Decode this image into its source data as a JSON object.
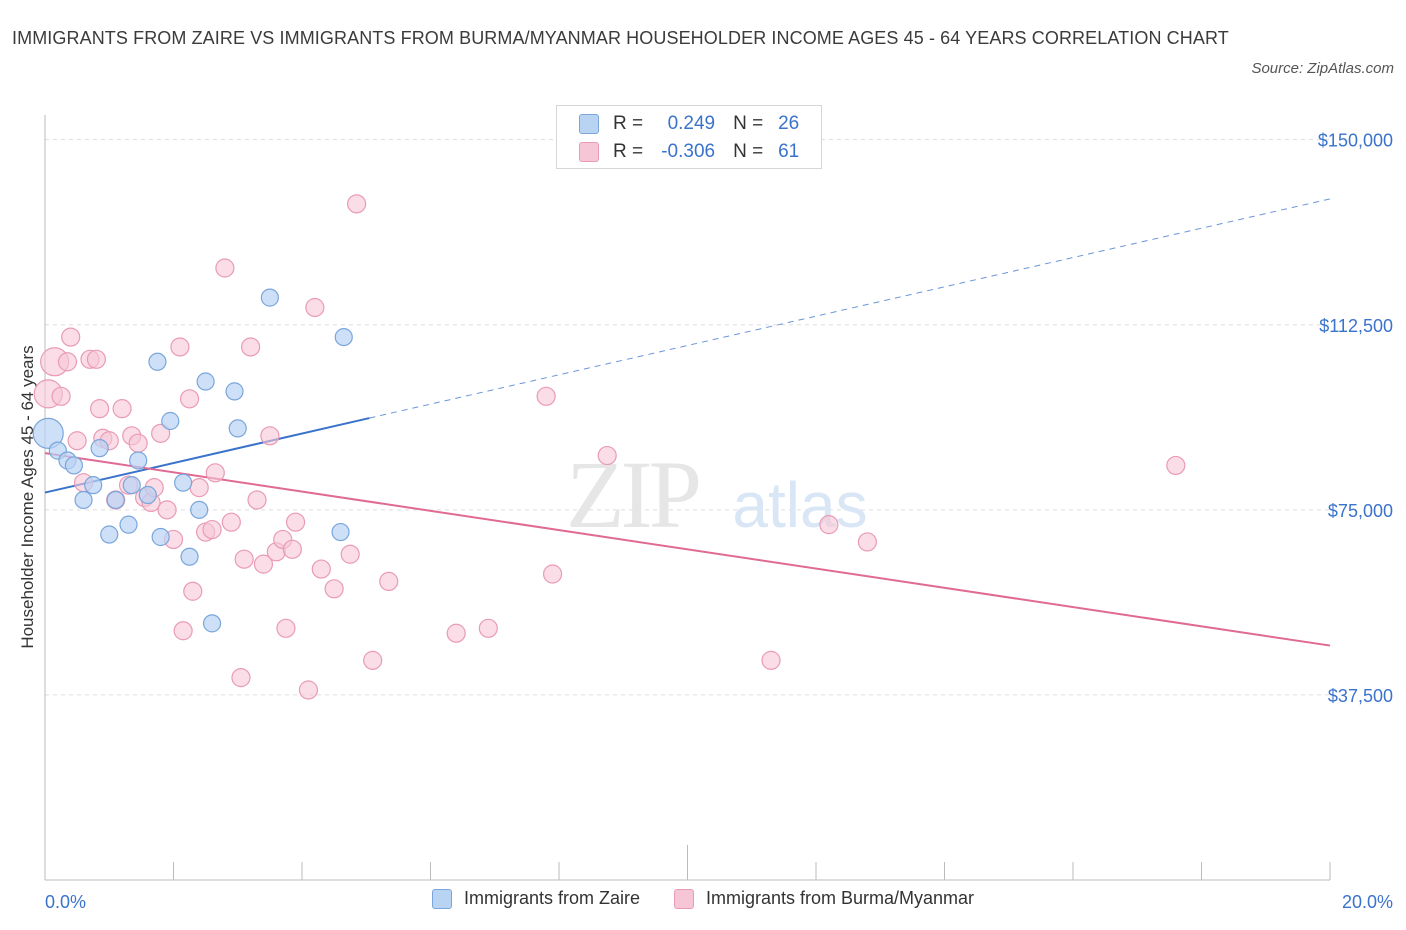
{
  "title": "IMMIGRANTS FROM ZAIRE VS IMMIGRANTS FROM BURMA/MYANMAR HOUSEHOLDER INCOME AGES 45 - 64 YEARS CORRELATION CHART",
  "source": "Source: ZipAtlas.com",
  "watermark": {
    "zip": "ZIP",
    "atlas": "atlas"
  },
  "legend_top": {
    "r_label": "R =",
    "n_label": "N =",
    "rows": [
      {
        "r": "0.249",
        "n": "26"
      },
      {
        "r": "-0.306",
        "n": "61"
      }
    ]
  },
  "colors": {
    "zaire_fill": "#b9d3f3",
    "zaire_stroke": "#7aa6dc",
    "zaire_line": "#3a73cc",
    "burma_fill": "#f7c6d6",
    "burma_stroke": "#e99bb5",
    "burma_line": "#e06a93",
    "axis_label": "#3a73cc",
    "grid": "#dddddd"
  },
  "chart_data": {
    "type": "scatter",
    "title": "IMMIGRANTS FROM ZAIRE VS IMMIGRANTS FROM BURMA/MYANMAR HOUSEHOLDER INCOME AGES 45 - 64 YEARS CORRELATION CHART",
    "xlabel": "",
    "ylabel": "Householder Income Ages 45 - 64 years",
    "xlim": [
      0,
      20
    ],
    "ylim": [
      0,
      155000
    ],
    "x_tick_labels": [
      "0.0%",
      "20.0%"
    ],
    "y_ticks": [
      37500,
      75000,
      112500,
      150000
    ],
    "y_tick_labels": [
      "$37,500",
      "$75,000",
      "$112,500",
      "$150,000"
    ],
    "grid": true,
    "legend_position": "top-center",
    "series": [
      {
        "name": "Immigrants from Zaire",
        "r": 0.249,
        "n": 26,
        "trend": {
          "x": [
            0,
            5.05
          ],
          "y": [
            78500,
            93600
          ]
        },
        "trend_ext": {
          "x": [
            5.05,
            20
          ],
          "y": [
            93600,
            138000
          ]
        },
        "points": [
          [
            0.05,
            90500
          ],
          [
            0.2,
            87000
          ],
          [
            0.35,
            85000
          ],
          [
            0.45,
            84000
          ],
          [
            0.6,
            77000
          ],
          [
            0.75,
            80000
          ],
          [
            0.85,
            87500
          ],
          [
            1.0,
            70000
          ],
          [
            1.1,
            77000
          ],
          [
            1.3,
            72000
          ],
          [
            1.35,
            80000
          ],
          [
            1.45,
            85000
          ],
          [
            1.6,
            78000
          ],
          [
            1.75,
            105000
          ],
          [
            1.8,
            69500
          ],
          [
            1.95,
            93000
          ],
          [
            2.15,
            80500
          ],
          [
            2.25,
            65500
          ],
          [
            2.4,
            75000
          ],
          [
            2.5,
            101000
          ],
          [
            2.6,
            52000
          ],
          [
            2.95,
            99000
          ],
          [
            3.0,
            91500
          ],
          [
            3.5,
            118000
          ],
          [
            4.6,
            70500
          ],
          [
            4.65,
            110000
          ]
        ]
      },
      {
        "name": "Immigrants from Burma/Myanmar",
        "r": -0.306,
        "n": 61,
        "trend": {
          "x": [
            0,
            20
          ],
          "y": [
            86500,
            47500
          ]
        },
        "points": [
          [
            0.05,
            98500
          ],
          [
            0.15,
            105000
          ],
          [
            0.25,
            98000
          ],
          [
            0.35,
            105000
          ],
          [
            0.4,
            110000
          ],
          [
            0.5,
            89000
          ],
          [
            0.6,
            80500
          ],
          [
            0.7,
            105500
          ],
          [
            0.8,
            105500
          ],
          [
            0.85,
            95500
          ],
          [
            0.9,
            89500
          ],
          [
            1.0,
            89000
          ],
          [
            1.1,
            77000
          ],
          [
            1.2,
            95500
          ],
          [
            1.3,
            80000
          ],
          [
            1.35,
            90000
          ],
          [
            1.45,
            88500
          ],
          [
            1.55,
            77500
          ],
          [
            1.65,
            76500
          ],
          [
            1.7,
            79500
          ],
          [
            1.8,
            90500
          ],
          [
            1.9,
            75000
          ],
          [
            2.0,
            69000
          ],
          [
            2.1,
            108000
          ],
          [
            2.15,
            50500
          ],
          [
            2.25,
            97500
          ],
          [
            2.3,
            58500
          ],
          [
            2.4,
            79500
          ],
          [
            2.5,
            70500
          ],
          [
            2.6,
            71000
          ],
          [
            2.65,
            82500
          ],
          [
            2.8,
            124000
          ],
          [
            2.9,
            72500
          ],
          [
            3.05,
            41000
          ],
          [
            3.1,
            65000
          ],
          [
            3.2,
            108000
          ],
          [
            3.3,
            77000
          ],
          [
            3.4,
            64000
          ],
          [
            3.5,
            90000
          ],
          [
            3.6,
            66500
          ],
          [
            3.7,
            69000
          ],
          [
            3.75,
            51000
          ],
          [
            3.85,
            67000
          ],
          [
            3.9,
            72500
          ],
          [
            4.1,
            38500
          ],
          [
            4.2,
            116000
          ],
          [
            4.3,
            63000
          ],
          [
            4.5,
            59000
          ],
          [
            4.75,
            66000
          ],
          [
            4.85,
            137000
          ],
          [
            5.1,
            44500
          ],
          [
            5.35,
            60500
          ],
          [
            6.4,
            50000
          ],
          [
            6.9,
            51000
          ],
          [
            7.8,
            98000
          ],
          [
            7.9,
            62000
          ],
          [
            8.75,
            86000
          ],
          [
            11.3,
            44500
          ],
          [
            12.2,
            72000
          ],
          [
            12.8,
            68500
          ],
          [
            17.6,
            84000
          ]
        ]
      }
    ]
  }
}
